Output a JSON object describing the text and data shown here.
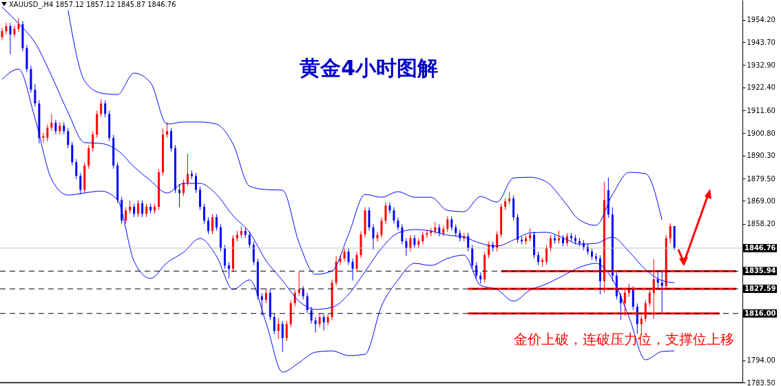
{
  "chart_data": {
    "type": "candlestick",
    "title": "黄金4小时图解",
    "subtitle": "XAUUSD_,H4  1857.12 1857.12 1845.87 1846.76",
    "categories": [
      null,
      null,
      null,
      null,
      null,
      null,
      null,
      null,
      null,
      null,
      null,
      null,
      null,
      null,
      null,
      null,
      null,
      null,
      null,
      null,
      null,
      null,
      null,
      null,
      null,
      null,
      null,
      null,
      null,
      null,
      null,
      null,
      null,
      null,
      null,
      null,
      null,
      null,
      null,
      null,
      null,
      null,
      null,
      null,
      null,
      null,
      null,
      null,
      null,
      null,
      null,
      null,
      null,
      null,
      null,
      null,
      null,
      null,
      null,
      null,
      null,
      null,
      null,
      null,
      null,
      null,
      null,
      null,
      null,
      null,
      null,
      null,
      null,
      null,
      null,
      null,
      null,
      null,
      null,
      null,
      null,
      null,
      null,
      null,
      null,
      null,
      null,
      null,
      null,
      null,
      null,
      null,
      null,
      null,
      null,
      null,
      null,
      null,
      null,
      null,
      null,
      null,
      null,
      null,
      null,
      null,
      null,
      null,
      null,
      null,
      null,
      null,
      null,
      null,
      null,
      null,
      null,
      null,
      null,
      null,
      null,
      null,
      null,
      null,
      null,
      null,
      null,
      null,
      null,
      null,
      null,
      null,
      null,
      null,
      null,
      null,
      null,
      null,
      null,
      null,
      null,
      null,
      null,
      null,
      null,
      null,
      null,
      null,
      null,
      null,
      null,
      null,
      null,
      null,
      null,
      null,
      null,
      null,
      null,
      null,
      null,
      null,
      null,
      null,
      null,
      null,
      null,
      null,
      null,
      null,
      null,
      null,
      null,
      null,
      null,
      null,
      null,
      null,
      null,
      null
    ],
    "ohlc": [
      [
        1946.0,
        1950.4,
        1944.5,
        1948.9
      ],
      [
        1948.9,
        1952.7,
        1947.4,
        1951.2
      ],
      [
        1951.2,
        1952.7,
        1938.0,
        1947.3
      ],
      [
        1947.3,
        1951.4,
        1945.8,
        1949.9
      ],
      [
        1949.9,
        1955.0,
        1948.4,
        1952.1
      ],
      [
        1952.1,
        1953.6,
        1939.3,
        1940.8
      ],
      [
        1940.8,
        1942.3,
        1929.5,
        1931.0
      ],
      [
        1931.0,
        1932.5,
        1919.8,
        1921.3
      ],
      [
        1921.3,
        1924.0,
        1913.3,
        1914.8
      ],
      [
        1914.8,
        1916.3,
        1896.0,
        1898.6
      ],
      [
        1898.6,
        1901.0,
        1896.5,
        1899.4
      ],
      [
        1898.6,
        1905.0,
        1897.0,
        1903.4
      ],
      [
        1903.4,
        1910.0,
        1902.0,
        1905.7
      ],
      [
        1905.7,
        1907.2,
        1900.3,
        1901.8
      ],
      [
        1901.8,
        1906.0,
        1900.3,
        1904.4
      ],
      [
        1904.4,
        1905.9,
        1900.3,
        1901.8
      ],
      [
        1901.8,
        1903.3,
        1893.8,
        1895.3
      ],
      [
        1895.3,
        1896.8,
        1885.7,
        1887.2
      ],
      [
        1887.2,
        1888.7,
        1879.2,
        1880.7
      ],
      [
        1880.7,
        1882.2,
        1872.0,
        1874.2
      ],
      [
        1874.2,
        1887.1,
        1872.7,
        1885.6
      ],
      [
        1885.6,
        1895.2,
        1884.1,
        1893.7
      ],
      [
        1893.7,
        1901.7,
        1892.2,
        1900.2
      ],
      [
        1900.2,
        1911.4,
        1898.7,
        1909.9
      ],
      [
        1909.9,
        1917.0,
        1908.4,
        1914.8
      ],
      [
        1914.8,
        1916.3,
        1908.4,
        1909.9
      ],
      [
        1909.9,
        1911.4,
        1897.1,
        1898.6
      ],
      [
        1898.6,
        1900.1,
        1884.1,
        1885.6
      ],
      [
        1885.6,
        1887.1,
        1867.9,
        1869.4
      ],
      [
        1869.4,
        1870.9,
        1858.2,
        1859.7
      ],
      [
        1859.7,
        1866.0,
        1858.2,
        1864.5
      ],
      [
        1864.5,
        1869.0,
        1863.0,
        1866.2
      ],
      [
        1866.2,
        1867.7,
        1861.4,
        1862.9
      ],
      [
        1862.9,
        1869.3,
        1861.4,
        1867.8
      ],
      [
        1867.8,
        1869.3,
        1861.4,
        1862.9
      ],
      [
        1862.9,
        1867.7,
        1861.4,
        1866.2
      ],
      [
        1866.2,
        1867.7,
        1863.0,
        1864.5
      ],
      [
        1864.5,
        1867.7,
        1863.0,
        1866.2
      ],
      [
        1866.2,
        1883.9,
        1864.7,
        1882.4
      ],
      [
        1882.4,
        1903.0,
        1880.9,
        1900.2
      ],
      [
        1900.2,
        1906.0,
        1898.7,
        1901.8
      ],
      [
        1901.8,
        1903.3,
        1892.2,
        1893.7
      ],
      [
        1893.7,
        1895.2,
        1872.7,
        1874.2
      ],
      [
        1874.2,
        1877.0,
        1866.0,
        1872.7
      ],
      [
        1872.7,
        1879.0,
        1871.2,
        1877.5
      ],
      [
        1877.5,
        1891.0,
        1876.0,
        1881.7
      ],
      [
        1881.7,
        1883.2,
        1879.2,
        1880.7
      ],
      [
        1880.7,
        1882.2,
        1872.7,
        1874.2
      ],
      [
        1874.2,
        1875.7,
        1864.7,
        1866.2
      ],
      [
        1866.2,
        1867.7,
        1858.2,
        1859.7
      ],
      [
        1859.7,
        1861.2,
        1853.3,
        1854.8
      ],
      [
        1854.8,
        1862.8,
        1853.3,
        1861.3
      ],
      [
        1861.3,
        1862.8,
        1855.0,
        1856.5
      ],
      [
        1856.5,
        1858.0,
        1845.2,
        1846.7
      ],
      [
        1846.7,
        1848.2,
        1837.1,
        1838.6
      ],
      [
        1838.6,
        1840.1,
        1832.5,
        1837.0
      ],
      [
        1837.0,
        1852.9,
        1835.5,
        1851.4
      ],
      [
        1851.4,
        1855.0,
        1849.9,
        1853.0
      ],
      [
        1853.0,
        1857.0,
        1851.5,
        1854.8
      ],
      [
        1854.8,
        1856.3,
        1851.5,
        1853.0
      ],
      [
        1853.0,
        1854.5,
        1846.8,
        1848.3
      ],
      [
        1848.3,
        1849.8,
        1838.8,
        1840.3
      ],
      [
        1840.3,
        1841.8,
        1822.6,
        1824.1
      ],
      [
        1824.1,
        1825.6,
        1815.0,
        1822.4
      ],
      [
        1822.4,
        1828.0,
        1820.9,
        1825.7
      ],
      [
        1825.7,
        1827.2,
        1812.8,
        1814.3
      ],
      [
        1814.3,
        1815.8,
        1806.3,
        1807.8
      ],
      [
        1807.8,
        1814.0,
        1804.0,
        1811.0
      ],
      [
        1811.0,
        1812.5,
        1798.0,
        1804.5
      ],
      [
        1804.5,
        1812.5,
        1803.0,
        1811.0
      ],
      [
        1811.0,
        1822.3,
        1809.5,
        1820.8
      ],
      [
        1820.8,
        1827.2,
        1819.3,
        1825.7
      ],
      [
        1825.7,
        1835.4,
        1824.2,
        1827.3
      ],
      [
        1827.3,
        1828.8,
        1822.6,
        1824.1
      ],
      [
        1824.1,
        1825.6,
        1816.1,
        1817.6
      ],
      [
        1817.6,
        1819.1,
        1811.2,
        1812.7
      ],
      [
        1812.7,
        1814.2,
        1807.0,
        1811.0
      ],
      [
        1811.0,
        1816.0,
        1809.5,
        1814.3
      ],
      [
        1814.3,
        1815.8,
        1808.0,
        1811.8
      ],
      [
        1811.8,
        1815.8,
        1810.3,
        1814.3
      ],
      [
        1814.3,
        1832.0,
        1812.8,
        1830.5
      ],
      [
        1830.5,
        1843.0,
        1829.0,
        1840.3
      ],
      [
        1840.3,
        1843.4,
        1838.8,
        1841.9
      ],
      [
        1841.9,
        1846.6,
        1840.4,
        1845.1
      ],
      [
        1845.1,
        1846.6,
        1838.8,
        1840.3
      ],
      [
        1840.3,
        1841.8,
        1831.5,
        1837.0
      ],
      [
        1837.0,
        1845.0,
        1835.5,
        1843.5
      ],
      [
        1843.5,
        1854.7,
        1842.0,
        1853.2
      ],
      [
        1853.2,
        1866.0,
        1851.7,
        1864.5
      ],
      [
        1864.5,
        1866.0,
        1855.0,
        1856.5
      ],
      [
        1856.5,
        1858.0,
        1846.0,
        1851.4
      ],
      [
        1851.4,
        1854.5,
        1849.9,
        1853.0
      ],
      [
        1853.0,
        1861.2,
        1851.5,
        1859.7
      ],
      [
        1859.7,
        1868.3,
        1858.2,
        1866.8
      ],
      [
        1866.8,
        1868.3,
        1863.0,
        1864.5
      ],
      [
        1864.5,
        1866.0,
        1858.2,
        1859.7
      ],
      [
        1859.7,
        1861.2,
        1855.0,
        1856.5
      ],
      [
        1856.5,
        1858.0,
        1848.5,
        1850.0
      ],
      [
        1850.0,
        1851.5,
        1843.0,
        1846.7
      ],
      [
        1846.7,
        1852.9,
        1845.2,
        1851.4
      ],
      [
        1851.4,
        1852.9,
        1846.8,
        1848.3
      ],
      [
        1848.3,
        1851.5,
        1846.8,
        1850.0
      ],
      [
        1850.0,
        1854.5,
        1848.5,
        1853.0
      ],
      [
        1853.0,
        1855.3,
        1851.5,
        1853.8
      ],
      [
        1853.8,
        1856.3,
        1852.3,
        1854.8
      ],
      [
        1854.8,
        1859.0,
        1853.3,
        1856.5
      ],
      [
        1856.5,
        1858.0,
        1852.3,
        1853.8
      ],
      [
        1853.8,
        1857.3,
        1852.3,
        1855.8
      ],
      [
        1855.8,
        1861.8,
        1854.3,
        1860.3
      ],
      [
        1860.3,
        1861.8,
        1855.0,
        1856.5
      ],
      [
        1856.5,
        1858.0,
        1852.3,
        1853.8
      ],
      [
        1853.8,
        1855.3,
        1849.9,
        1851.4
      ],
      [
        1851.4,
        1853.9,
        1849.9,
        1852.4
      ],
      [
        1852.4,
        1853.9,
        1845.2,
        1846.7
      ],
      [
        1846.7,
        1848.2,
        1837.1,
        1838.6
      ],
      [
        1838.6,
        1840.1,
        1832.3,
        1833.8
      ],
      [
        1833.8,
        1835.3,
        1830.0,
        1832.1
      ],
      [
        1832.1,
        1845.0,
        1830.6,
        1843.5
      ],
      [
        1843.5,
        1849.8,
        1842.0,
        1848.3
      ],
      [
        1848.3,
        1849.8,
        1845.2,
        1846.7
      ],
      [
        1846.7,
        1854.7,
        1845.2,
        1853.2
      ],
      [
        1853.2,
        1867.7,
        1851.7,
        1866.2
      ],
      [
        1866.2,
        1870.3,
        1864.7,
        1868.8
      ],
      [
        1868.8,
        1873.0,
        1867.3,
        1870.1
      ],
      [
        1870.1,
        1871.6,
        1859.8,
        1861.3
      ],
      [
        1861.3,
        1862.8,
        1849.2,
        1850.7
      ],
      [
        1850.7,
        1852.2,
        1848.5,
        1850.0
      ],
      [
        1850.0,
        1852.9,
        1848.5,
        1851.4
      ],
      [
        1851.4,
        1856.0,
        1849.9,
        1853.0
      ],
      [
        1853.0,
        1854.5,
        1842.0,
        1843.5
      ],
      [
        1843.5,
        1845.0,
        1838.8,
        1840.3
      ],
      [
        1840.3,
        1842.0,
        1838.0,
        1841.1
      ],
      [
        1840.3,
        1848.2,
        1838.8,
        1846.7
      ],
      [
        1846.7,
        1852.9,
        1845.2,
        1851.4
      ],
      [
        1851.4,
        1853.0,
        1848.9,
        1850.4
      ],
      [
        1850.4,
        1855.0,
        1848.9,
        1851.4
      ],
      [
        1851.4,
        1852.9,
        1847.6,
        1849.1
      ],
      [
        1849.1,
        1853.9,
        1847.6,
        1852.4
      ],
      [
        1852.4,
        1853.9,
        1849.9,
        1851.4
      ],
      [
        1851.4,
        1852.9,
        1848.5,
        1850.0
      ],
      [
        1850.0,
        1851.5,
        1847.6,
        1849.1
      ],
      [
        1849.1,
        1850.6,
        1845.8,
        1847.3
      ],
      [
        1847.3,
        1848.8,
        1843.6,
        1845.1
      ],
      [
        1845.1,
        1846.6,
        1841.3,
        1842.8
      ],
      [
        1842.8,
        1844.3,
        1840.4,
        1841.9
      ],
      [
        1841.9,
        1843.4,
        1825.0,
        1831.2
      ],
      [
        1831.2,
        1878.0,
        1826.0,
        1869.4
      ],
      [
        1874.0,
        1880.0,
        1861.0,
        1862.6
      ],
      [
        1862.6,
        1866.0,
        1831.0,
        1833.8
      ],
      [
        1833.8,
        1835.3,
        1822.6,
        1824.1
      ],
      [
        1824.1,
        1825.6,
        1813.0,
        1820.8
      ],
      [
        1820.8,
        1827.2,
        1815.0,
        1825.7
      ],
      [
        1825.7,
        1830.0,
        1823.8,
        1827.3
      ],
      [
        1827.3,
        1828.8,
        1817.7,
        1819.2
      ],
      [
        1819.2,
        1820.7,
        1806.5,
        1811.0
      ],
      [
        1811.0,
        1815.1,
        1806.0,
        1813.6
      ],
      [
        1813.6,
        1822.3,
        1812.1,
        1820.8
      ],
      [
        1820.8,
        1827.2,
        1819.3,
        1825.7
      ],
      [
        1825.7,
        1841.5,
        1813.5,
        1832.1
      ],
      [
        1832.1,
        1835.5,
        1828.0,
        1830.5
      ],
      [
        1830.5,
        1836.0,
        1816.5,
        1828.9
      ],
      [
        1828.9,
        1852.9,
        1827.4,
        1851.4
      ],
      [
        1851.4,
        1858.5,
        1849.0,
        1857.12
      ],
      [
        1857.12,
        1857.12,
        1845.87,
        1846.76
      ],
      null,
      null,
      null,
      null,
      null,
      null,
      null,
      null,
      null,
      null,
      null,
      null,
      null,
      null,
      null,
      null
    ],
    "colors": [
      "#ff0000",
      "#ff0000",
      "#0000ff",
      "#ff0000",
      "#ff0000",
      "#0000ff",
      "#0000ff",
      "#0000ff",
      "#0000ff",
      "#0000ff",
      "#ff0000",
      "#ff0000",
      "#ff0000",
      "#0000ff",
      "#ff0000",
      "#0000ff",
      "#0000ff",
      "#0000ff",
      "#0000ff",
      "#0000ff",
      "#ff0000",
      "#ff0000",
      "#ff0000",
      "#ff0000",
      "#ff0000",
      "#0000ff",
      "#0000ff",
      "#0000ff",
      "#0000ff",
      "#0000ff",
      "#ff0000",
      "#ff0000",
      "#0000ff",
      "#ff0000",
      "#0000ff",
      "#ff0000",
      "#0000ff",
      "#ff0000",
      "#ff0000",
      "#ff0000",
      "#ff0000",
      "#0000ff",
      "#0000ff",
      "#0000ff",
      "#ff0000",
      "#ff0000",
      "#0000ff",
      "#0000ff",
      "#0000ff",
      "#0000ff",
      "#0000ff",
      "#ff0000",
      "#0000ff",
      "#0000ff",
      "#0000ff",
      "#0000ff",
      "#ff0000",
      "#ff0000",
      "#ff0000",
      "#0000ff",
      "#0000ff",
      "#0000ff",
      "#0000ff",
      "#0000ff",
      "#ff0000",
      "#0000ff",
      "#0000ff",
      "#ff0000",
      "#0000ff",
      "#ff0000",
      "#ff0000",
      "#ff0000",
      "#ff0000",
      "#0000ff",
      "#0000ff",
      "#0000ff",
      "#0000ff",
      "#ff0000",
      "#0000ff",
      "#ff0000",
      "#ff0000",
      "#ff0000",
      "#ff0000",
      "#ff0000",
      "#0000ff",
      "#0000ff",
      "#ff0000",
      "#ff0000",
      "#ff0000",
      "#0000ff",
      "#0000ff",
      "#ff0000",
      "#ff0000",
      "#ff0000",
      "#0000ff",
      "#0000ff",
      "#0000ff",
      "#0000ff",
      "#0000ff",
      "#ff0000",
      "#0000ff",
      "#ff0000",
      "#ff0000",
      "#ff0000",
      "#ff0000",
      "#ff0000",
      "#0000ff",
      "#ff0000",
      "#ff0000",
      "#0000ff",
      "#0000ff",
      "#0000ff",
      "#ff0000",
      "#0000ff",
      "#0000ff",
      "#0000ff",
      "#0000ff",
      "#ff0000",
      "#ff0000",
      "#0000ff",
      "#ff0000",
      "#ff0000",
      "#ff0000",
      "#ff0000",
      "#0000ff",
      "#0000ff",
      "#0000ff",
      "#ff0000",
      "#ff0000",
      "#0000ff",
      "#0000ff",
      "#ff0000",
      "#ff0000",
      "#ff0000",
      "#0000ff",
      "#ff0000",
      "#0000ff",
      "#ff0000",
      "#0000ff",
      "#0000ff",
      "#0000ff",
      "#0000ff",
      "#0000ff",
      "#0000ff",
      "#0000ff",
      "#0000ff",
      "#ff0000",
      "#0000ff",
      "#0000ff",
      "#0000ff",
      "#0000ff",
      "#ff0000",
      "#ff0000",
      "#0000ff",
      "#0000ff",
      "#ff0000",
      "#ff0000",
      "#ff0000",
      "#ff0000",
      "#0000ff",
      "#0000ff",
      "#ff0000",
      "#ff0000",
      "#0000ff",
      null,
      null,
      null,
      null,
      null,
      null,
      null,
      null,
      null,
      null,
      null,
      null,
      null,
      null,
      null,
      null
    ],
    "series": [
      {
        "type": "line",
        "color": "#0000ff",
        "values": [
          null,
          null,
          null,
          null,
          null,
          null,
          null,
          null,
          null,
          null,
          null,
          null,
          null,
          null,
          null,
          null,
          1958.6,
          null,
          null,
          null,
          1925.5,
          null,
          null,
          null,
          1919.7,
          null,
          null,
          null,
          1919.0,
          null,
          null,
          null,
          1929.1,
          null,
          null,
          null,
          1924.6,
          null,
          null,
          null,
          1905.1,
          null,
          null,
          null,
          1906.1,
          null,
          null,
          null,
          1906.1,
          null,
          null,
          null,
          1905.1,
          null,
          null,
          null,
          1895.7,
          null,
          null,
          null,
          1875.9,
          null,
          null,
          null,
          1874.3,
          null,
          null,
          null,
          1874.0,
          null,
          null,
          null,
          1849.3,
          null,
          null,
          null,
          1834.4,
          null,
          null,
          null,
          1836.0,
          null,
          null,
          null,
          1853.2,
          null,
          null,
          null,
          1872.0,
          null,
          null,
          null,
          1870.7,
          null,
          null,
          null,
          1873.3,
          null,
          null,
          null,
          1870.7,
          null,
          null,
          null,
          1870.7,
          null,
          null,
          null,
          1864.5,
          null,
          null,
          null,
          1863.9,
          null,
          null,
          null,
          1871.0,
          null,
          null,
          null,
          1868.4,
          null,
          null,
          null,
          1879.8,
          null,
          null,
          null,
          1880.1,
          null,
          null,
          null,
          1877.9,
          null,
          null,
          null,
          1869.4,
          null,
          null,
          null,
          1860.0,
          null,
          null,
          null,
          1857.5,
          null,
          null,
          null,
          1872.0,
          null,
          null,
          null,
          1882.4,
          null,
          null,
          null,
          1881.8,
          null,
          null,
          null,
          1860.0,
          null,
          null,
          null,
          null,
          null,
          null,
          null,
          null,
          null,
          null,
          null,
          null,
          null,
          null,
          null,
          null,
          null,
          null,
          null
        ]
      },
      {
        "type": "line",
        "color": "#0000ff",
        "values": [
          1960.2,
          null,
          null,
          null,
          1952.4,
          null,
          null,
          null,
          1943.4,
          null,
          null,
          null,
          1927.8,
          null,
          null,
          null,
          1910.6,
          null,
          null,
          null,
          1896.4,
          null,
          null,
          null,
          1896.0,
          null,
          null,
          null,
          1892.8,
          null,
          null,
          null,
          1885.0,
          null,
          null,
          null,
          1878.5,
          null,
          null,
          null,
          1872.7,
          null,
          null,
          null,
          1877.2,
          null,
          null,
          null,
          1877.2,
          null,
          null,
          null,
          1872.0,
          null,
          null,
          null,
          1862.0,
          null,
          null,
          null,
          1854.2,
          null,
          null,
          null,
          1840.9,
          null,
          null,
          null,
          1831.5,
          null,
          null,
          null,
          1821.8,
          null,
          null,
          null,
          1817.9,
          null,
          null,
          null,
          1818.9,
          null,
          null,
          null,
          1825.0,
          null,
          null,
          null,
          1835.7,
          null,
          null,
          null,
          1846.7,
          null,
          null,
          null,
          1853.9,
          null,
          null,
          null,
          1855.5,
          null,
          null,
          null,
          1854.8,
          null,
          null,
          null,
          1852.9,
          null,
          null,
          null,
          1851.9,
          null,
          null,
          null,
          1849.0,
          null,
          null,
          null,
          1847.7,
          null,
          null,
          null,
          1850.6,
          null,
          null,
          null,
          1853.9,
          null,
          null,
          null,
          1854.2,
          null,
          null,
          null,
          1851.6,
          null,
          null,
          null,
          1848.6,
          null,
          null,
          null,
          1849.0,
          null,
          null,
          null,
          1851.9,
          null,
          null,
          null,
          1845.1,
          null,
          null,
          null,
          1836.7,
          null,
          null,
          null,
          1831.5,
          null,
          null,
          1830.5,
          null,
          null,
          null,
          null,
          null,
          null,
          null,
          null,
          null,
          null,
          null,
          null,
          null,
          null,
          null,
          null
        ]
      },
      {
        "type": "line",
        "color": "#0000ff",
        "values": [
          1926.2,
          null,
          null,
          null,
          1931.0,
          null,
          null,
          null,
          1907.7,
          null,
          null,
          null,
          1879.2,
          null,
          null,
          null,
          1871.7,
          null,
          null,
          null,
          1872.7,
          null,
          null,
          null,
          1873.6,
          null,
          null,
          null,
          1869.4,
          null,
          null,
          null,
          1840.6,
          null,
          null,
          null,
          1832.5,
          null,
          null,
          null,
          1839.9,
          null,
          null,
          null,
          1844.8,
          null,
          null,
          null,
          1851.3,
          null,
          null,
          null,
          1842.9,
          null,
          null,
          null,
          1827.3,
          null,
          null,
          null,
          1831.8,
          null,
          null,
          null,
          1811.7,
          null,
          null,
          null,
          1788.4,
          null,
          null,
          null,
          1792.9,
          null,
          null,
          null,
          1797.8,
          null,
          null,
          null,
          1798.4,
          null,
          null,
          null,
          1796.2,
          null,
          null,
          null,
          1796.8,
          null,
          null,
          null,
          1819.5,
          null,
          null,
          null,
          1831.8,
          null,
          null,
          null,
          1839.6,
          null,
          null,
          null,
          1838.6,
          null,
          null,
          null,
          1841.9,
          null,
          null,
          null,
          1843.5,
          null,
          null,
          null,
          1829.2,
          null,
          null,
          null,
          1827.3,
          null,
          null,
          null,
          1821.8,
          null,
          null,
          null,
          1827.0,
          null,
          null,
          null,
          1829.9,
          null,
          null,
          null,
          1833.8,
          null,
          null,
          null,
          1837.7,
          null,
          null,
          null,
          1839.6,
          null,
          null,
          null,
          1832.1,
          null,
          null,
          null,
          1814.3,
          null,
          null,
          null,
          1794.2,
          null,
          null,
          null,
          1798.1,
          null,
          null,
          1798.4,
          null,
          null,
          null,
          null,
          null,
          null,
          null,
          null,
          null,
          null,
          null,
          null,
          null,
          null,
          null,
          null
        ]
      },
      {
        "type": "line",
        "color": "#ff0000",
        "values": [
          null,
          null,
          null,
          null,
          null,
          null,
          null,
          null,
          null,
          null,
          null,
          null,
          null,
          null,
          null,
          null,
          null,
          null,
          null,
          null,
          null,
          null,
          null,
          null,
          null,
          null,
          null,
          null,
          null,
          null,
          null,
          null,
          null,
          null,
          null,
          null,
          null,
          null,
          null,
          null,
          null,
          null,
          null,
          null,
          null,
          null,
          null,
          null,
          null,
          null,
          null,
          null,
          null,
          null,
          null,
          null,
          null,
          null,
          null,
          null,
          null,
          null,
          null,
          null,
          null,
          null,
          null,
          null,
          null,
          null,
          null,
          null,
          null,
          null,
          null,
          null,
          null,
          null,
          null,
          null,
          null,
          null,
          null,
          null,
          null,
          null,
          null,
          null,
          null,
          null,
          null,
          null,
          null,
          null,
          null,
          null,
          null,
          null,
          null,
          null,
          null,
          null,
          null,
          null,
          null,
          null,
          null,
          null,
          null,
          null,
          null,
          null,
          null,
          null,
          null,
          null,
          null,
          null,
          null,
          null,
          null,
          1835.9,
          null,
          null,
          null,
          null,
          null,
          null,
          null,
          null,
          null,
          null,
          null,
          null,
          null,
          null,
          null,
          null,
          null,
          null,
          null,
          null,
          null,
          null,
          null,
          null,
          null,
          null,
          null,
          null,
          null,
          null,
          null,
          null,
          null,
          null,
          null,
          null,
          null,
          null,
          null,
          null,
          null,
          null,
          null,
          null,
          null,
          null,
          null,
          null,
          null,
          null,
          null,
          null,
          null,
          null,
          null,
          null,
          1835.9,
          null
        ]
      },
      {
        "type": "line",
        "color": "#ff0000",
        "values": [
          null,
          null,
          null,
          null,
          null,
          null,
          null,
          null,
          null,
          null,
          null,
          null,
          null,
          null,
          null,
          null,
          null,
          null,
          null,
          null,
          null,
          null,
          null,
          null,
          null,
          null,
          null,
          null,
          null,
          null,
          null,
          null,
          null,
          null,
          null,
          null,
          null,
          null,
          null,
          null,
          null,
          null,
          null,
          null,
          null,
          null,
          null,
          null,
          null,
          null,
          null,
          null,
          null,
          null,
          null,
          null,
          null,
          null,
          null,
          null,
          null,
          null,
          null,
          null,
          null,
          null,
          null,
          null,
          null,
          null,
          null,
          null,
          null,
          null,
          null,
          null,
          null,
          null,
          null,
          null,
          null,
          null,
          null,
          null,
          null,
          null,
          null,
          null,
          null,
          null,
          null,
          null,
          null,
          null,
          null,
          null,
          null,
          null,
          null,
          null,
          null,
          null,
          null,
          null,
          null,
          null,
          null,
          null,
          null,
          null,
          null,
          null,
          null,
          1827.6,
          null,
          null,
          null,
          null,
          null,
          null,
          null,
          null,
          null,
          null,
          null,
          null,
          null,
          null,
          null,
          null,
          null,
          null,
          null,
          null,
          null,
          null,
          null,
          null,
          null,
          null,
          null,
          null,
          null,
          null,
          null,
          null,
          null,
          null,
          null,
          null,
          null,
          null,
          null,
          null,
          null,
          null,
          null,
          null,
          null,
          null,
          null,
          null,
          null,
          null,
          null,
          null,
          null,
          null,
          null,
          null,
          null,
          null,
          null,
          null,
          null,
          null,
          null,
          null,
          1827.6,
          null
        ]
      },
      {
        "type": "line",
        "color": "#ff0000",
        "values": [
          null,
          null,
          null,
          null,
          null,
          null,
          null,
          null,
          null,
          null,
          null,
          null,
          null,
          null,
          null,
          null,
          null,
          null,
          null,
          null,
          null,
          null,
          null,
          null,
          null,
          null,
          null,
          null,
          null,
          null,
          null,
          null,
          null,
          null,
          null,
          null,
          null,
          null,
          null,
          null,
          null,
          null,
          null,
          null,
          null,
          null,
          null,
          null,
          null,
          null,
          null,
          null,
          null,
          null,
          null,
          null,
          null,
          null,
          null,
          null,
          null,
          null,
          null,
          null,
          null,
          null,
          null,
          null,
          null,
          null,
          null,
          null,
          null,
          null,
          null,
          null,
          null,
          null,
          null,
          null,
          null,
          null,
          null,
          null,
          null,
          null,
          null,
          null,
          null,
          null,
          null,
          null,
          null,
          null,
          null,
          null,
          null,
          null,
          null,
          null,
          null,
          null,
          null,
          null,
          null,
          null,
          null,
          null,
          null,
          null,
          null,
          null,
          null,
          1816.0,
          null,
          null,
          null,
          null,
          null,
          null,
          null,
          null,
          null,
          null,
          null,
          null,
          null,
          null,
          null,
          null,
          null,
          null,
          null,
          null,
          null,
          null,
          null,
          null,
          null,
          null,
          null,
          null,
          null,
          null,
          null,
          null,
          null,
          null,
          null,
          null,
          null,
          null,
          null,
          null,
          null,
          null,
          null,
          null,
          null,
          null,
          null,
          null,
          null,
          null,
          null,
          null,
          null,
          null,
          null,
          null,
          null,
          null,
          null,
          null,
          1816.0,
          null,
          null,
          null,
          null,
          null
        ]
      }
    ],
    "ylim": [
      1783.5,
      1963.5
    ],
    "yticks": [
      {
        "value": 1954.2,
        "label": "1954.20"
      },
      {
        "value": 1943.7,
        "label": "1943.70"
      },
      {
        "value": 1932.9,
        "label": "1932.90"
      },
      {
        "value": 1922.4,
        "label": "1922.40"
      },
      {
        "value": 1911.6,
        "label": "1911.60"
      },
      {
        "value": 1900.8,
        "label": "1900.80"
      },
      {
        "value": 1890.3,
        "label": "1890.30"
      },
      {
        "value": 1879.5,
        "label": "1879.50"
      },
      {
        "value": 1869,
        "label": "1869.00"
      },
      {
        "value": 1858.2,
        "label": "1858.20"
      },
      {
        "value": 1794,
        "label": "1794.00"
      },
      {
        "value": 1783.5,
        "label": "1783.50"
      }
    ],
    "tick_labels": "y",
    "ref_lines": [
      {
        "axis": "y",
        "value": 1846.76,
        "label": "1846.76",
        "color": "#c0c0c0",
        "line_style": "solid"
      },
      {
        "axis": "y",
        "value": 1835.94,
        "label": "1835.94",
        "color": "#000000",
        "line_style": "dashed"
      },
      {
        "axis": "y",
        "value": 1827.59,
        "label": "1827.59",
        "color": "#000000",
        "line_style": "dashed"
      },
      {
        "axis": "y",
        "value": 1816.0,
        "label": "1816.00",
        "color": "#000000",
        "line_style": "dashed"
      }
    ],
    "annotations": [
      "金价上破，连破压力位，支撑位上移"
    ]
  }
}
